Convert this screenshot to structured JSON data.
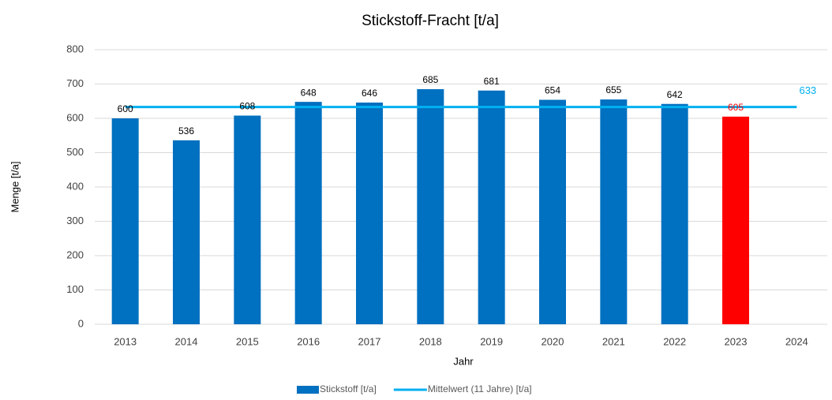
{
  "chart_data": {
    "type": "bar",
    "title": "Stickstoff-Fracht [t/a]",
    "x_label": "Jahr",
    "y_label": "Menge [t/a]",
    "categories": [
      "2013",
      "2014",
      "2015",
      "2016",
      "2017",
      "2018",
      "2019",
      "2020",
      "2021",
      "2022",
      "2023",
      "2024"
    ],
    "series": [
      {
        "name": "Stickstoff [t/a]",
        "type": "bar",
        "color": "#0070c0",
        "colors": [
          "#0070c0",
          "#0070c0",
          "#0070c0",
          "#0070c0",
          "#0070c0",
          "#0070c0",
          "#0070c0",
          "#0070c0",
          "#0070c0",
          "#0070c0",
          "#ff0000",
          null
        ],
        "values": [
          600,
          536,
          608,
          648,
          646,
          685,
          681,
          654,
          655,
          642,
          605,
          null
        ]
      },
      {
        "name": "Mittelwert (11 Jahre) [t/a]",
        "type": "line",
        "color": "#00b0f0",
        "values": [
          633,
          633,
          633,
          633,
          633,
          633,
          633,
          633,
          633,
          633,
          633,
          633
        ]
      }
    ],
    "ylim": [
      0,
      800
    ],
    "yticks": [
      0,
      100,
      200,
      300,
      400,
      500,
      600,
      700,
      800
    ],
    "grid": true,
    "legend": "bottom"
  }
}
